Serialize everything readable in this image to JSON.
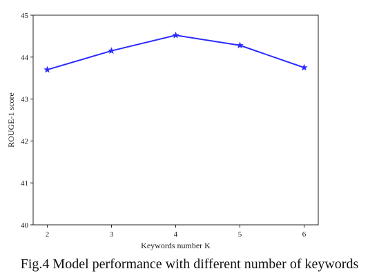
{
  "chart_data": {
    "type": "line",
    "title": "",
    "xlabel": "Keywords number K",
    "ylabel": "ROUGE-1 score",
    "x": [
      2,
      3,
      4,
      5,
      6
    ],
    "series": [
      {
        "values": [
          43.7,
          44.15,
          44.52,
          44.28,
          43.75
        ],
        "color": "#2b2bff",
        "marker": "star"
      }
    ],
    "xticks": [
      "2",
      "3",
      "4",
      "5",
      "6"
    ],
    "yticks": [
      "40",
      "41",
      "42",
      "43",
      "44",
      "45"
    ],
    "xlim": [
      1.78,
      6.22
    ],
    "ylim": [
      40,
      45
    ],
    "grid": false,
    "legend": "none"
  },
  "caption": "Fig.4 Model performance with different number of keywords"
}
